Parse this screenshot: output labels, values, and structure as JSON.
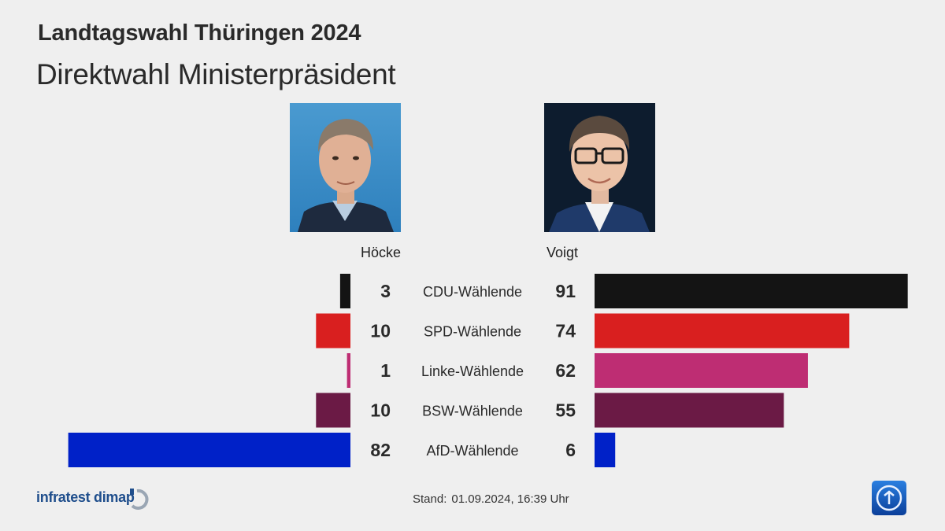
{
  "header": {
    "title": "Landtagswahl Thüringen 2024",
    "subtitle": "Direktwahl Ministerpräsident"
  },
  "candidates": {
    "left": {
      "name": "Höcke"
    },
    "right": {
      "name": "Voigt"
    }
  },
  "colors": {
    "background": "#efefef",
    "CDU": "#141414",
    "SPD": "#d91f1f",
    "Linke": "#be2d73",
    "BSW": "#6b1a45",
    "AfD": "#0021c8"
  },
  "chart_data": {
    "type": "bar",
    "orientation": "horizontal-butterfly",
    "title": "Direktwahl Ministerpräsident",
    "categories": [
      "CDU-Wählende",
      "SPD-Wählende",
      "Linke-Wählende",
      "BSW-Wählende",
      "AfD-Wählende"
    ],
    "colors": [
      "#141414",
      "#d91f1f",
      "#be2d73",
      "#6b1a45",
      "#0021c8"
    ],
    "series": [
      {
        "name": "Höcke",
        "side": "left",
        "values": [
          3,
          10,
          1,
          10,
          82
        ]
      },
      {
        "name": "Voigt",
        "side": "right",
        "values": [
          91,
          74,
          62,
          55,
          6
        ]
      }
    ],
    "xlim": [
      0,
      100
    ],
    "unit": "%"
  },
  "footer": {
    "brand": "infratest dimap",
    "stand_label": "Stand:",
    "stand_value": "01.09.2024, 16:39 Uhr"
  }
}
